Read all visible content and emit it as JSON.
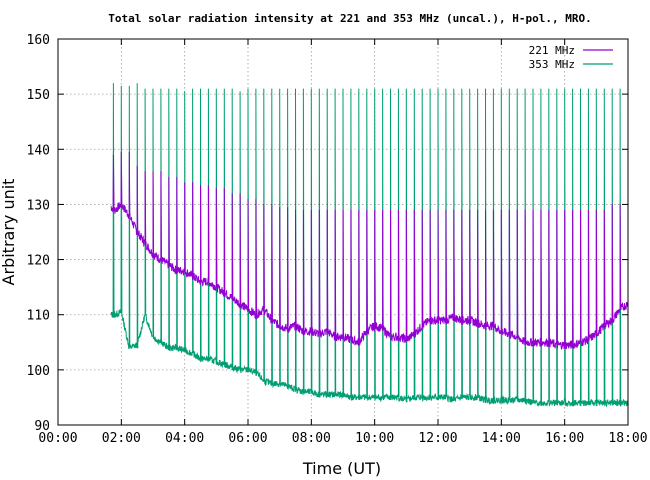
{
  "chart_data": {
    "type": "line",
    "title": "Total solar radiation intensity at 221 and 353 MHz (uncal.), H-pol., MRO.",
    "xlabel": "Time (UT)",
    "ylabel": "Arbitrary unit",
    "xlim": [
      0,
      18
    ],
    "ylim": [
      90,
      160
    ],
    "x_ticks": [
      "00:00",
      "02:00",
      "04:00",
      "06:00",
      "08:00",
      "10:00",
      "12:00",
      "14:00",
      "16:00",
      "18:00"
    ],
    "y_ticks": [
      "90",
      "100",
      "110",
      "120",
      "130",
      "140",
      "150",
      "160"
    ],
    "grid": true,
    "legend_position": "top-right",
    "series": [
      {
        "name": "221 MHz",
        "color": "#9400d3",
        "x": [
          1.67,
          1.8,
          2.0,
          2.25,
          2.5,
          2.75,
          3.0,
          3.25,
          3.5,
          3.75,
          4.0,
          4.25,
          4.5,
          4.75,
          5.0,
          5.25,
          5.5,
          5.75,
          6.0,
          6.25,
          6.5,
          6.75,
          7.0,
          7.25,
          7.5,
          7.75,
          8.0,
          8.25,
          8.5,
          8.75,
          9.0,
          9.25,
          9.5,
          9.75,
          10.0,
          10.25,
          10.5,
          10.75,
          11.0,
          11.25,
          11.5,
          11.75,
          12.0,
          12.25,
          12.5,
          12.75,
          13.0,
          13.25,
          13.5,
          13.75,
          14.0,
          14.25,
          14.5,
          14.75,
          15.0,
          15.25,
          15.5,
          15.75,
          16.0,
          16.25,
          16.5,
          16.75,
          17.0,
          17.25,
          17.5,
          17.75,
          18.0
        ],
        "values": [
          129.5,
          129,
          130,
          128,
          125,
          123,
          121,
          120,
          119,
          118,
          118,
          117,
          116,
          116,
          115,
          114,
          113,
          112,
          111,
          110,
          111,
          109,
          108,
          107.5,
          108,
          107,
          107,
          106.5,
          107,
          106,
          106,
          105.5,
          105,
          107,
          108,
          107.5,
          106,
          106,
          105.5,
          106.5,
          108,
          109,
          109,
          109,
          109.5,
          109,
          109,
          108.5,
          108,
          108,
          107,
          106.5,
          106,
          105,
          105,
          105,
          105,
          104.5,
          104.5,
          104.5,
          105,
          105.5,
          106.5,
          108,
          109,
          111,
          112
        ]
      },
      {
        "name": "353 MHz",
        "color": "#009e73",
        "x": [
          1.67,
          1.8,
          2.0,
          2.25,
          2.5,
          2.75,
          3.0,
          3.25,
          3.5,
          3.75,
          4.0,
          4.25,
          4.5,
          4.75,
          5.0,
          5.25,
          5.5,
          5.75,
          6.0,
          6.25,
          6.5,
          6.75,
          7.0,
          7.25,
          7.5,
          7.75,
          8.0,
          8.25,
          8.5,
          8.75,
          9.0,
          9.25,
          9.5,
          9.75,
          10.0,
          10.25,
          10.5,
          10.75,
          11.0,
          11.25,
          11.5,
          11.75,
          12.0,
          12.25,
          12.5,
          12.75,
          13.0,
          13.25,
          13.5,
          13.75,
          14.0,
          14.25,
          14.5,
          14.75,
          15.0,
          15.25,
          15.5,
          15.75,
          16.0,
          16.25,
          16.5,
          16.75,
          17.0,
          17.25,
          17.5,
          17.75,
          18.0
        ],
        "values": [
          110,
          110,
          110.5,
          104,
          104.5,
          110,
          106,
          105,
          104,
          104,
          103.5,
          103,
          102,
          102,
          101.5,
          101,
          100.5,
          100,
          100,
          99.5,
          98,
          97.5,
          97.5,
          97,
          96.5,
          96,
          96,
          95.5,
          95.5,
          95.5,
          95.5,
          95,
          95,
          95,
          95,
          95,
          95,
          95,
          94.5,
          95,
          95,
          95,
          95,
          95,
          94.5,
          95,
          95,
          95,
          94.5,
          94.5,
          94.5,
          94.5,
          94.5,
          94.5,
          94,
          94,
          94,
          94,
          94,
          94,
          94,
          94,
          94,
          94,
          94,
          94,
          94
        ]
      }
    ],
    "spikes": {
      "221 MHz": {
        "x": [
          1.75,
          2.0,
          2.25,
          2.5,
          2.75,
          3.0,
          3.25,
          3.5,
          3.75,
          4.0,
          4.25,
          4.5,
          4.75,
          5.0,
          5.25,
          5.5,
          5.75,
          6.0,
          6.25,
          6.5,
          6.75,
          7.0,
          7.25,
          7.5,
          7.75,
          8.0,
          8.25,
          8.5,
          8.75,
          9.0,
          9.25,
          9.5,
          9.75,
          10.0,
          10.25,
          10.5,
          10.75,
          11.0,
          11.25,
          11.5,
          11.75,
          12.0,
          12.25,
          12.5,
          12.75,
          13.0,
          13.25,
          13.5,
          13.75,
          14.0,
          14.25,
          14.5,
          14.75,
          15.0,
          15.25,
          15.5,
          15.75,
          16.0,
          16.25,
          16.5,
          16.75,
          17.0,
          17.25,
          17.5,
          17.75
        ],
        "peaks": [
          139,
          139.5,
          139.5,
          137,
          136,
          136,
          136,
          135,
          135,
          134,
          134,
          133.5,
          133.5,
          133,
          133,
          132,
          132,
          131,
          131,
          130,
          130,
          129.5,
          129.5,
          129,
          129,
          129,
          129,
          129,
          129,
          129,
          129,
          129,
          129,
          129,
          129,
          129,
          129,
          129,
          129,
          129,
          129,
          129,
          129,
          129,
          129,
          129,
          129,
          129,
          129,
          129,
          129,
          129,
          129,
          129,
          129,
          129,
          129,
          129,
          129,
          129,
          129,
          129,
          129,
          130,
          130
        ]
      },
      "353 MHz": {
        "x": [
          1.75,
          2.0,
          2.25,
          2.5,
          2.75,
          3.0,
          3.25,
          3.5,
          3.75,
          4.0,
          4.25,
          4.5,
          4.75,
          5.0,
          5.25,
          5.5,
          5.75,
          6.0,
          6.25,
          6.5,
          6.75,
          7.0,
          7.25,
          7.5,
          7.75,
          8.0,
          8.25,
          8.5,
          8.75,
          9.0,
          9.25,
          9.5,
          9.75,
          10.0,
          10.25,
          10.5,
          10.75,
          11.0,
          11.25,
          11.5,
          11.75,
          12.0,
          12.25,
          12.5,
          12.75,
          13.0,
          13.25,
          13.5,
          13.75,
          14.0,
          14.25,
          14.5,
          14.75,
          15.0,
          15.25,
          15.5,
          15.75,
          16.0,
          16.25,
          16.5,
          16.75,
          17.0,
          17.25,
          17.5,
          17.75
        ],
        "peaks": [
          152,
          151.5,
          151.5,
          152,
          151,
          151,
          151,
          151,
          151,
          150.5,
          151,
          151,
          151,
          151,
          151,
          151,
          150.5,
          151,
          151,
          151,
          151,
          151,
          151,
          151,
          151,
          151,
          151,
          151,
          151,
          151,
          151,
          151,
          151,
          151,
          151,
          151,
          151,
          151,
          151,
          151,
          151,
          151,
          151,
          151,
          151,
          151,
          151,
          151,
          151,
          151,
          151,
          151,
          151,
          151,
          151,
          151,
          151,
          151,
          151,
          151,
          151,
          151,
          151,
          151,
          151
        ]
      }
    }
  }
}
